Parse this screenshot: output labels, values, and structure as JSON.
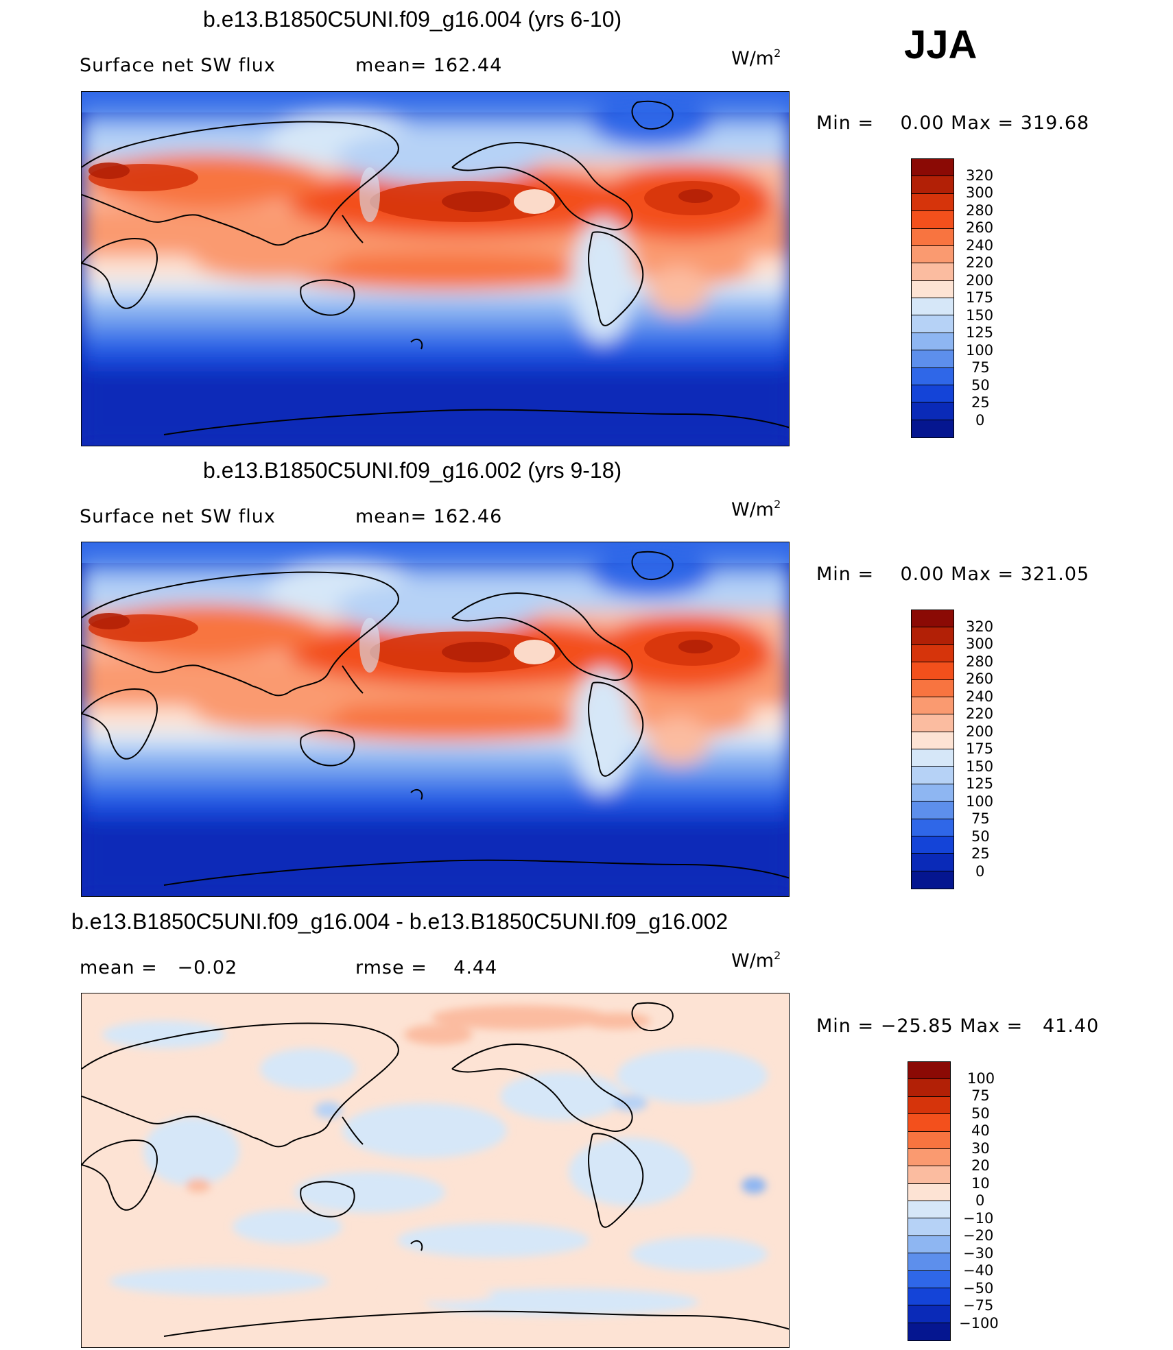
{
  "season": "JJA",
  "panels": [
    {
      "title": "b.e13.B1850C5UNI.f09_g16.004 (yrs 6-10)",
      "left_text": "Surface net SW flux",
      "mid_text": "mean= 162.44",
      "units_base": "W/m",
      "units_sup": "2",
      "minmax": "Min =    0.00 Max = 319.68",
      "levels": [
        "320",
        "300",
        "280",
        "260",
        "240",
        "220",
        "200",
        "175",
        "150",
        "125",
        "100",
        "75",
        "50",
        "25",
        "0"
      ],
      "colors": [
        "#8b0a05",
        "#b22006",
        "#d6340b",
        "#f3501c",
        "#f87440",
        "#fa9a70",
        "#fbbca0",
        "#fde3d4",
        "#d6e7f8",
        "#b6d2f6",
        "#8eb6f2",
        "#5d8fec",
        "#2f67e8",
        "#1444d8",
        "#0a2ab8",
        "#051690"
      ]
    },
    {
      "title": "b.e13.B1850C5UNI.f09_g16.002 (yrs 9-18)",
      "left_text": "Surface net SW flux",
      "mid_text": "mean= 162.46",
      "units_base": "W/m",
      "units_sup": "2",
      "minmax": "Min =    0.00 Max = 321.05",
      "levels": [
        "320",
        "300",
        "280",
        "260",
        "240",
        "220",
        "200",
        "175",
        "150",
        "125",
        "100",
        "75",
        "50",
        "25",
        "0"
      ],
      "colors": [
        "#8b0a05",
        "#b22006",
        "#d6340b",
        "#f3501c",
        "#f87440",
        "#fa9a70",
        "#fbbca0",
        "#fde3d4",
        "#d6e7f8",
        "#b6d2f6",
        "#8eb6f2",
        "#5d8fec",
        "#2f67e8",
        "#1444d8",
        "#0a2ab8",
        "#051690"
      ]
    },
    {
      "title": "b.e13.B1850C5UNI.f09_g16.004 - b.e13.B1850C5UNI.f09_g16.002",
      "left_text": "mean =   −0.02",
      "mid_text": "rmse =    4.44",
      "units_base": "W/m",
      "units_sup": "2",
      "minmax": "Min = −25.85 Max =   41.40",
      "levels": [
        "100",
        "75",
        "50",
        "40",
        "30",
        "20",
        "10",
        "0",
        "−10",
        "−20",
        "−30",
        "−40",
        "−50",
        "−75",
        "−100"
      ],
      "colors": [
        "#8b0a05",
        "#b22006",
        "#d6340b",
        "#f3501c",
        "#f87440",
        "#fa9a70",
        "#fbbca0",
        "#fde3d4",
        "#d6e7f8",
        "#b6d2f6",
        "#8eb6f2",
        "#5d8fec",
        "#2f67e8",
        "#1444d8",
        "#0a2ab8",
        "#051690"
      ]
    }
  ],
  "chart_data": [
    {
      "type": "heatmap",
      "title": "b.e13.B1850C5UNI.f09_g16.004 (yrs 6-10)",
      "variable": "Surface net SW flux",
      "units": "W/m2",
      "season": "JJA",
      "mean": 162.44,
      "min": 0.0,
      "max": 319.68,
      "contour_levels": [
        0,
        25,
        50,
        75,
        100,
        125,
        150,
        175,
        200,
        220,
        240,
        260,
        280,
        300,
        320
      ]
    },
    {
      "type": "heatmap",
      "title": "b.e13.B1850C5UNI.f09_g16.002 (yrs 9-18)",
      "variable": "Surface net SW flux",
      "units": "W/m2",
      "season": "JJA",
      "mean": 162.46,
      "min": 0.0,
      "max": 321.05,
      "contour_levels": [
        0,
        25,
        50,
        75,
        100,
        125,
        150,
        175,
        200,
        220,
        240,
        260,
        280,
        300,
        320
      ]
    },
    {
      "type": "heatmap",
      "title": "b.e13.B1850C5UNI.f09_g16.004 - b.e13.B1850C5UNI.f09_g16.002",
      "units": "W/m2",
      "season": "JJA",
      "mean": -0.02,
      "rmse": 4.44,
      "min": -25.85,
      "max": 41.4,
      "contour_levels": [
        -100,
        -75,
        -50,
        -40,
        -30,
        -20,
        -10,
        0,
        10,
        20,
        30,
        40,
        50,
        75,
        100
      ]
    }
  ]
}
